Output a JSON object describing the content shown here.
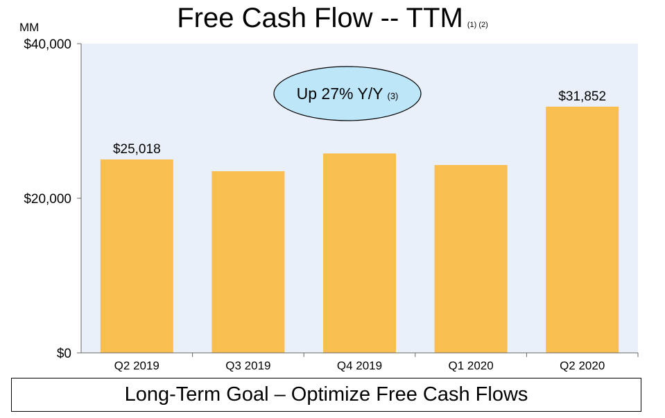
{
  "title": "Free Cash Flow -- TTM",
  "title_notes": "(1) (2)",
  "unit_label": "MM",
  "callout": {
    "text": "Up 27% Y/Y",
    "note": "(3)"
  },
  "goal": "Long-Term Goal – Optimize Free Cash Flows",
  "colors": {
    "bar": "#F8BE4F",
    "plot_bg": "#EAF0FA",
    "callout_fill": "#BDE6F9",
    "axis": "#666666"
  },
  "chart_data": {
    "type": "bar",
    "categories": [
      "Q2 2019",
      "Q3 2019",
      "Q4 2019",
      "Q1 2020",
      "Q2 2020"
    ],
    "values": [
      25018,
      23500,
      25800,
      24300,
      31852
    ],
    "data_labels": [
      "$25,018",
      "",
      "",
      "",
      "$31,852"
    ],
    "ylim": [
      0,
      40000
    ],
    "yticks": [
      0,
      20000,
      40000
    ],
    "ytick_labels": [
      "$0",
      "$20,000",
      "$40,000"
    ],
    "grid": false
  }
}
